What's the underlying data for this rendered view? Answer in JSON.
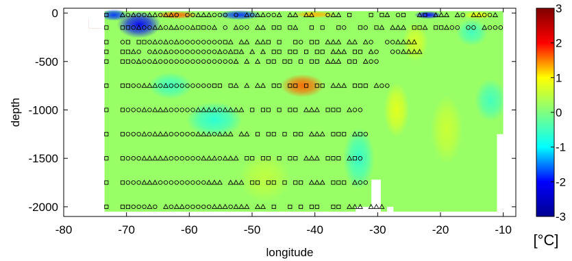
{
  "chart_data": {
    "type": "heatmap",
    "title": "",
    "xlabel": "longitude",
    "ylabel": "depth",
    "xlim": [
      -80,
      -8
    ],
    "ylim": [
      -2100,
      50
    ],
    "xticks": [
      -80,
      -70,
      -60,
      -50,
      -40,
      -30,
      -20,
      -10
    ],
    "yticks": [
      0,
      -500,
      -1000,
      -1500,
      -2000
    ],
    "colorbar": {
      "unit": "[°C]",
      "limits": [
        -3,
        3
      ],
      "ticks": [
        3,
        2,
        1,
        0,
        -1,
        -2,
        -3
      ],
      "colormap": "jet",
      "colors": [
        "#00008f",
        "#0000ff",
        "#00ffff",
        "#80ff80",
        "#ffff00",
        "#ff0000",
        "#800000"
      ]
    },
    "field_extent": {
      "x": [
        -73.5,
        -10
      ],
      "y": [
        -2050,
        20
      ]
    },
    "background_value": 0.2,
    "anomalies": [
      {
        "x": -42,
        "y": -750,
        "value": 1.6,
        "rx": 3.5,
        "ry": 120
      },
      {
        "x": -68,
        "y": -120,
        "value": -2.0,
        "rx": 3.5,
        "ry": 140
      },
      {
        "x": -72,
        "y": -20,
        "value": -1.8,
        "rx": 2.2,
        "ry": 60
      },
      {
        "x": -62,
        "y": -20,
        "value": 1.6,
        "rx": 3.5,
        "ry": 40
      },
      {
        "x": -52,
        "y": -20,
        "value": -1.8,
        "rx": 3.5,
        "ry": 50
      },
      {
        "x": -40,
        "y": -15,
        "value": 1.3,
        "rx": 3.5,
        "ry": 35
      },
      {
        "x": -22,
        "y": -20,
        "value": -2.0,
        "rx": 2.2,
        "ry": 40
      },
      {
        "x": -14,
        "y": -20,
        "value": 0.9,
        "rx": 2.5,
        "ry": 40
      },
      {
        "x": -56,
        "y": -1100,
        "value": -0.7,
        "rx": 4.5,
        "ry": 180
      },
      {
        "x": -63,
        "y": -750,
        "value": -0.5,
        "rx": 3.5,
        "ry": 140
      },
      {
        "x": -33,
        "y": -1500,
        "value": -0.6,
        "rx": 2.5,
        "ry": 320
      },
      {
        "x": -27,
        "y": -1000,
        "value": 0.8,
        "rx": 2.0,
        "ry": 280
      },
      {
        "x": -19,
        "y": -1200,
        "value": 0.6,
        "rx": 2.5,
        "ry": 350
      },
      {
        "x": -12,
        "y": -900,
        "value": -0.5,
        "rx": 2.5,
        "ry": 220
      },
      {
        "x": -48,
        "y": -1700,
        "value": 0.5,
        "rx": 4.0,
        "ry": 250
      },
      {
        "x": -24,
        "y": -300,
        "value": 0.7,
        "rx": 2.0,
        "ry": 200
      },
      {
        "x": -15,
        "y": -200,
        "value": -0.5,
        "rx": 2.5,
        "ry": 140
      }
    ],
    "masks": [
      {
        "x": [
          -76,
          -73.5
        ],
        "y": [
          -160,
          20
        ]
      },
      {
        "x": [
          -10,
          -8
        ],
        "y": [
          -2100,
          20
        ]
      },
      {
        "x": [
          -33.5,
          -29.5
        ],
        "y": [
          -2100,
          -2000
        ]
      },
      {
        "x": [
          -31,
          -29.5
        ],
        "y": [
          -2100,
          -1720
        ]
      },
      {
        "x": [
          -28.5,
          -27.5
        ],
        "y": [
          -2100,
          -2000
        ]
      },
      {
        "x": [
          -11,
          -10
        ],
        "y": [
          -2100,
          -1250
        ]
      }
    ],
    "corner_anomaly": {
      "x": [
        -76,
        -74
      ],
      "y": [
        -160,
        -60
      ],
      "value": 2.4
    },
    "station_rows": [
      {
        "depth": -20,
        "pattern": "P..AOAOOAAOAAO.ooAAAOOO.O.AOAAOOA.AA.AA..OAA.P...P.PA.OP..AP.AAA.AO.AAOOA"
      },
      {
        "depth": -150,
        "pattern": "P..PPOAOOAAOAAOOAPPOA.O.AOO.AA.PP.PA..P.P..PO..PO.PA.AAA.PPA.PPAOO.OO.AOOO"
      },
      {
        "depth": -300,
        "pattern": "P..OP.PPOAOAOAOOOOOOOOPA.AA.AAP.P..PO.PP.AAA.AA.AO..OOAAAA"
      },
      {
        "depth": -400,
        "pattern": "P..PPAO.OAOAOOOOOOOOOAOAPA.A.A.PP.PP.P.PP.AAA.PP.AO..OOAAAA"
      },
      {
        "depth": -500,
        "pattern": "P..PPOAOOAOOOOOOOOOOOOOOA.A.A.PP.PP.P.PP.AAA.PP.AOO"
      },
      {
        "depth": -750,
        "pattern": "P..PPOOAAAOAOOOOOOOOPP.PA.A.AA.PP.PP.P.PP.AAA.PPP.AOO"
      },
      {
        "depth": -1000,
        "pattern": "P..POOOAOAAAOOOOOAAAAOAAAA.P.PP.P.PP.AAA.PPP.AOO"
      },
      {
        "depth": -1250,
        "pattern": "P..POOOAOAAAOOOOOAAAOAAA.AA.P.PP.P.PP.AAA.PPP.APO"
      },
      {
        "depth": -1500,
        "pattern": "P..POOOAAAAAOOOOOOAAAOAAA.PP.PP.P.PP.AAA.PPP.APO"
      },
      {
        "depth": -1750,
        "pattern": "P..POOOAAAOOOOOOOOOAAA.AAA.PP.PP.P.PP.AAA.PPP.AOO"
      },
      {
        "depth": -2000,
        "pattern": "P..PPOOOAO.AOAAOOOOOAAAOAAA.AA.P..P.P.PP..PP.AAA.AAA"
      }
    ]
  }
}
